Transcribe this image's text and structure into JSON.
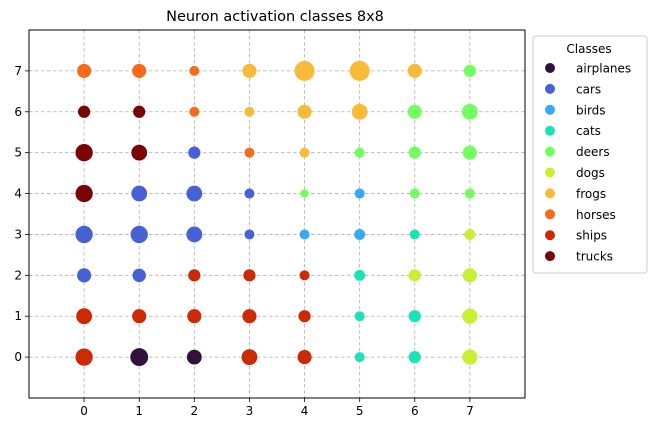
{
  "chart_data": {
    "type": "scatter",
    "title": "Neuron activation classes 8x8",
    "xlabel": "",
    "ylabel": "",
    "xlim": [
      -1,
      8
    ],
    "ylim": [
      -1,
      8
    ],
    "xticks": [
      0,
      1,
      2,
      3,
      4,
      5,
      6,
      7
    ],
    "yticks": [
      0,
      1,
      2,
      3,
      4,
      5,
      6,
      7
    ],
    "grid": true,
    "legend": {
      "title": "Classes",
      "placement": "outside-right-top",
      "entries": [
        "airplanes",
        "cars",
        "birds",
        "cats",
        "deers",
        "dogs",
        "frogs",
        "horses",
        "ships",
        "trucks"
      ]
    },
    "class_colors": {
      "airplanes": "#30123b",
      "cars": "#4661d6",
      "birds": "#36aaf9",
      "cats": "#1ae4b6",
      "deers": "#72fe5e",
      "dogs": "#c8ef34",
      "frogs": "#faba39",
      "horses": "#f66b19",
      "ships": "#cb2a04",
      "trucks": "#7a0403"
    },
    "points": [
      {
        "x": 0,
        "y": 7,
        "class": "horses",
        "size": 2
      },
      {
        "x": 1,
        "y": 7,
        "class": "horses",
        "size": 2
      },
      {
        "x": 2,
        "y": 7,
        "class": "horses",
        "size": 1
      },
      {
        "x": 3,
        "y": 7,
        "class": "frogs",
        "size": 2
      },
      {
        "x": 4,
        "y": 7,
        "class": "frogs",
        "size": 4
      },
      {
        "x": 5,
        "y": 7,
        "class": "frogs",
        "size": 4
      },
      {
        "x": 6,
        "y": 7,
        "class": "frogs",
        "size": 2
      },
      {
        "x": 7,
        "y": 7,
        "class": "deers",
        "size": 1.5
      },
      {
        "x": 0,
        "y": 6,
        "class": "trucks",
        "size": 1.5
      },
      {
        "x": 1,
        "y": 6,
        "class": "trucks",
        "size": 1.5
      },
      {
        "x": 2,
        "y": 6,
        "class": "horses",
        "size": 1
      },
      {
        "x": 3,
        "y": 6,
        "class": "frogs",
        "size": 1
      },
      {
        "x": 4,
        "y": 6,
        "class": "frogs",
        "size": 2
      },
      {
        "x": 5,
        "y": 6,
        "class": "frogs",
        "size": 2.5
      },
      {
        "x": 6,
        "y": 6,
        "class": "deers",
        "size": 2
      },
      {
        "x": 7,
        "y": 6,
        "class": "deers",
        "size": 2.5
      },
      {
        "x": 0,
        "y": 5,
        "class": "trucks",
        "size": 3
      },
      {
        "x": 1,
        "y": 5,
        "class": "trucks",
        "size": 2.5
      },
      {
        "x": 2,
        "y": 5,
        "class": "cars",
        "size": 1.5
      },
      {
        "x": 3,
        "y": 5,
        "class": "horses",
        "size": 1
      },
      {
        "x": 4,
        "y": 5,
        "class": "frogs",
        "size": 1
      },
      {
        "x": 5,
        "y": 5,
        "class": "deers",
        "size": 1
      },
      {
        "x": 6,
        "y": 5,
        "class": "deers",
        "size": 1.5
      },
      {
        "x": 7,
        "y": 5,
        "class": "deers",
        "size": 2
      },
      {
        "x": 0,
        "y": 4,
        "class": "trucks",
        "size": 3
      },
      {
        "x": 1,
        "y": 4,
        "class": "cars",
        "size": 2.5
      },
      {
        "x": 2,
        "y": 4,
        "class": "cars",
        "size": 2.5
      },
      {
        "x": 3,
        "y": 4,
        "class": "cars",
        "size": 1
      },
      {
        "x": 4,
        "y": 4,
        "class": "deers",
        "size": 0.7
      },
      {
        "x": 5,
        "y": 4,
        "class": "birds",
        "size": 1
      },
      {
        "x": 6,
        "y": 4,
        "class": "deers",
        "size": 1
      },
      {
        "x": 7,
        "y": 4,
        "class": "deers",
        "size": 1
      },
      {
        "x": 0,
        "y": 3,
        "class": "cars",
        "size": 3
      },
      {
        "x": 1,
        "y": 3,
        "class": "cars",
        "size": 3
      },
      {
        "x": 2,
        "y": 3,
        "class": "cars",
        "size": 2.5
      },
      {
        "x": 3,
        "y": 3,
        "class": "cars",
        "size": 1
      },
      {
        "x": 4,
        "y": 3,
        "class": "birds",
        "size": 1
      },
      {
        "x": 5,
        "y": 3,
        "class": "birds",
        "size": 1.2
      },
      {
        "x": 6,
        "y": 3,
        "class": "cats",
        "size": 1
      },
      {
        "x": 7,
        "y": 3,
        "class": "dogs",
        "size": 1.2
      },
      {
        "x": 0,
        "y": 2,
        "class": "cars",
        "size": 2
      },
      {
        "x": 1,
        "y": 2,
        "class": "cars",
        "size": 1.8
      },
      {
        "x": 2,
        "y": 2,
        "class": "ships",
        "size": 1.5
      },
      {
        "x": 3,
        "y": 2,
        "class": "ships",
        "size": 1.5
      },
      {
        "x": 4,
        "y": 2,
        "class": "ships",
        "size": 1
      },
      {
        "x": 5,
        "y": 2,
        "class": "cats",
        "size": 1.2
      },
      {
        "x": 6,
        "y": 2,
        "class": "dogs",
        "size": 1.5
      },
      {
        "x": 7,
        "y": 2,
        "class": "dogs",
        "size": 2
      },
      {
        "x": 0,
        "y": 1,
        "class": "ships",
        "size": 2.5
      },
      {
        "x": 1,
        "y": 1,
        "class": "ships",
        "size": 2
      },
      {
        "x": 2,
        "y": 1,
        "class": "ships",
        "size": 2
      },
      {
        "x": 3,
        "y": 1,
        "class": "ships",
        "size": 2
      },
      {
        "x": 4,
        "y": 1,
        "class": "ships",
        "size": 1.5
      },
      {
        "x": 5,
        "y": 1,
        "class": "cats",
        "size": 1
      },
      {
        "x": 6,
        "y": 1,
        "class": "cats",
        "size": 1.5
      },
      {
        "x": 7,
        "y": 1,
        "class": "dogs",
        "size": 2.3
      },
      {
        "x": 0,
        "y": 0,
        "class": "ships",
        "size": 3
      },
      {
        "x": 1,
        "y": 0,
        "class": "airplanes",
        "size": 3.2
      },
      {
        "x": 2,
        "y": 0,
        "class": "airplanes",
        "size": 2.2
      },
      {
        "x": 3,
        "y": 0,
        "class": "ships",
        "size": 2.5
      },
      {
        "x": 4,
        "y": 0,
        "class": "ships",
        "size": 2
      },
      {
        "x": 5,
        "y": 0,
        "class": "cats",
        "size": 1
      },
      {
        "x": 6,
        "y": 0,
        "class": "cats",
        "size": 1.5
      },
      {
        "x": 7,
        "y": 0,
        "class": "dogs",
        "size": 2.3
      }
    ]
  }
}
